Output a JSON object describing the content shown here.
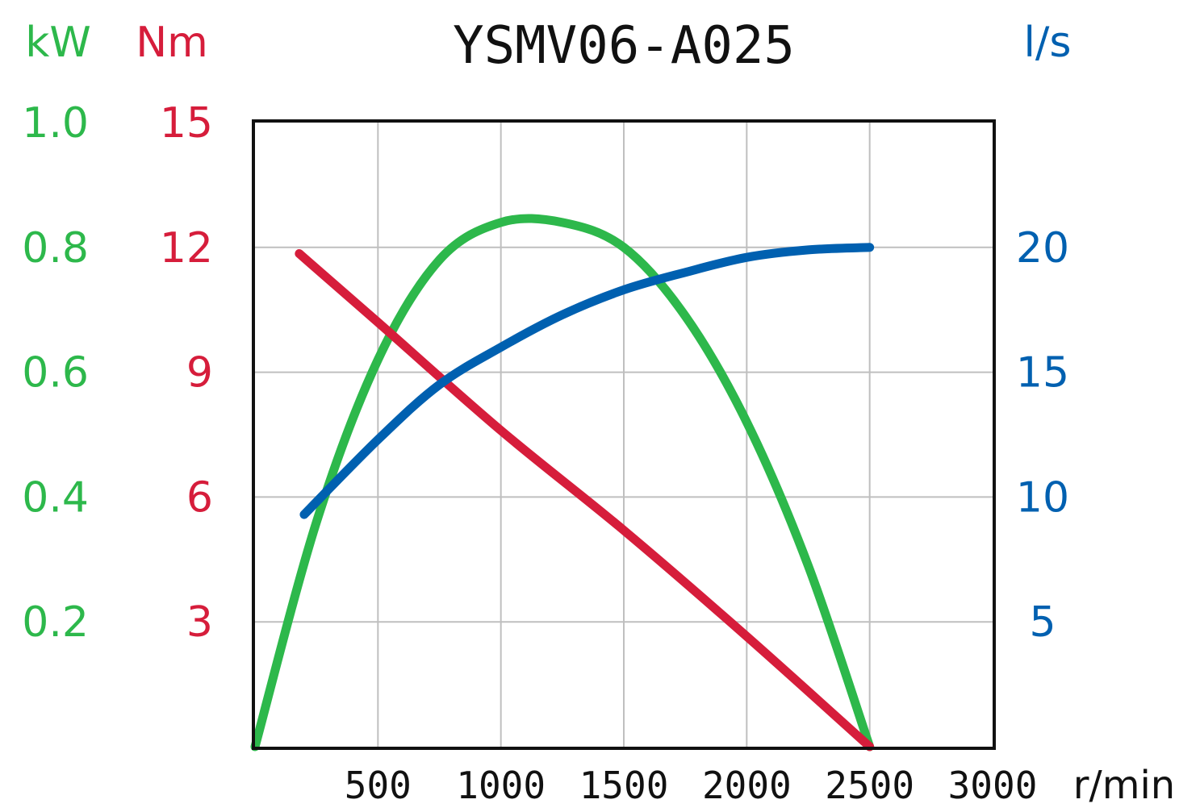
{
  "colors": {
    "power": "#2db84b",
    "torque": "#d61d3b",
    "flow": "#0060b0",
    "grid": "#bfbfbf",
    "frame": "#111111"
  },
  "chart_data": {
    "type": "line",
    "title": "YSMV06-A025",
    "xlabel": "r/min",
    "xlim": [
      0,
      3000
    ],
    "x_ticks": [
      "500",
      "1000",
      "1500",
      "2000",
      "2500",
      "3000"
    ],
    "grid": true,
    "axes": {
      "power": {
        "label": "kW",
        "ylim": [
          0,
          1.0
        ],
        "ticks": [
          "0.2",
          "0.4",
          "0.6",
          "0.8",
          "1.0"
        ],
        "side": "left-outer"
      },
      "torque": {
        "label": "Nm",
        "ylim": [
          0,
          15
        ],
        "ticks": [
          "3",
          "6",
          "9",
          "12",
          "15"
        ],
        "side": "left-inner"
      },
      "flow": {
        "label": "l/s",
        "ylim": [
          0,
          25
        ],
        "ticks": [
          "5",
          "10",
          "15",
          "20"
        ],
        "side": "right"
      }
    },
    "series": [
      {
        "axis": "power",
        "x": [
          0,
          250,
          500,
          750,
          1000,
          1250,
          1500,
          1750,
          2000,
          2250,
          2500
        ],
        "values": [
          0,
          0.36,
          0.62,
          0.78,
          0.84,
          0.84,
          0.8,
          0.69,
          0.52,
          0.29,
          0
        ]
      },
      {
        "axis": "torque",
        "x": [
          180,
          500,
          1000,
          1500,
          2000,
          2500
        ],
        "values": [
          11.85,
          10.2,
          7.6,
          5.2,
          2.65,
          0
        ]
      },
      {
        "axis": "flow",
        "x": [
          200,
          500,
          750,
          1000,
          1250,
          1500,
          1750,
          2000,
          2250,
          2500
        ],
        "values": [
          9.3,
          12.3,
          14.5,
          16.0,
          17.3,
          18.3,
          19.0,
          19.6,
          19.9,
          20.0
        ]
      }
    ]
  }
}
